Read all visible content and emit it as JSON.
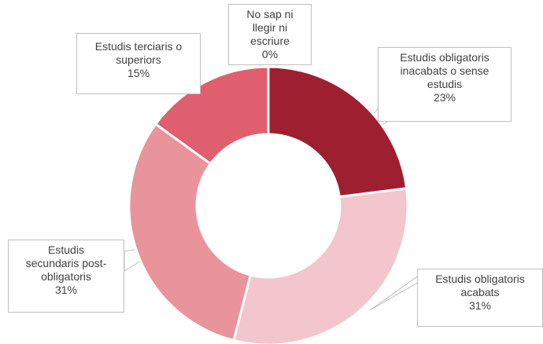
{
  "chart_data": {
    "type": "donut",
    "categories": [
      "No sap ni llegir ni escriure",
      "Estudis obligatoris inacabats o sense estudis",
      "Estudis obligatoris acabats",
      "Estudis secundaris post-obligatoris",
      "Estudis terciaris o superiors"
    ],
    "values": [
      0,
      23,
      31,
      31,
      15
    ],
    "value_labels": [
      "0%",
      "23%",
      "31%",
      "31%",
      "15%"
    ],
    "colors": [
      "#c0392b",
      "#9e1f2f",
      "#f2c6cc",
      "#e9939b",
      "#e05f6e"
    ]
  }
}
